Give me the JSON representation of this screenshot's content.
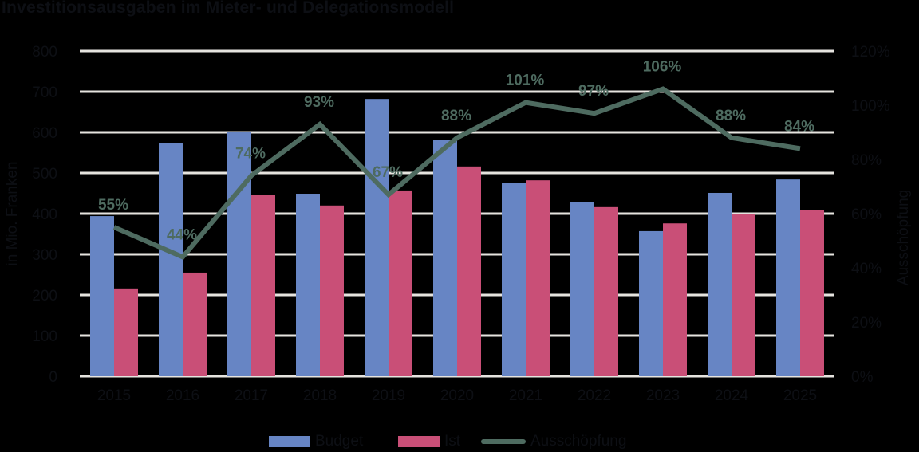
{
  "title": "Investitionsausgaben im Mieter- und Delegationsmodell",
  "colors": {
    "background": "#000000",
    "budget": "#6785c4",
    "ist": "#c94f77",
    "ausschoepfung": "#4e6b60",
    "grid": "#e6e4df",
    "text": "#0d0f14"
  },
  "chart_data": {
    "type": "bar",
    "title": "Investitionsausgaben im Mieter- und Delegationsmodell",
    "xlabel": "",
    "ylabel": "in Mio. Franken",
    "y2label": "Ausschöpfung",
    "ylim": [
      0,
      800
    ],
    "y2lim": [
      0,
      1.2
    ],
    "yticks": [
      "0",
      "100",
      "200",
      "300",
      "400",
      "500",
      "600",
      "700",
      "800"
    ],
    "y2ticks": [
      "0%",
      "20%",
      "40%",
      "60%",
      "80%",
      "100%",
      "120%"
    ],
    "grid": true,
    "legend_position": "bottom",
    "categories": [
      "2015",
      "2016",
      "2017",
      "2018",
      "2019",
      "2020",
      "2021",
      "2022",
      "2023",
      "2024",
      "2025"
    ],
    "series": [
      {
        "name": "Budget",
        "type": "bar",
        "axis": "left",
        "values": [
          394,
          573,
          602,
          449,
          682,
          582,
          476,
          429,
          357,
          451,
          484
        ]
      },
      {
        "name": "Ist",
        "type": "bar",
        "axis": "left",
        "values": [
          216,
          255,
          447,
          420,
          457,
          516,
          482,
          416,
          376,
          398,
          408
        ]
      },
      {
        "name": "Ausschöpfung",
        "type": "line",
        "axis": "right",
        "values": [
          55,
          44,
          74,
          93,
          67,
          88,
          101,
          97,
          106,
          88,
          84
        ],
        "labels": [
          "55%",
          "44%",
          "74%",
          "93%",
          "67%",
          "88%",
          "101%",
          "97%",
          "106%",
          "88%",
          "84%"
        ]
      }
    ]
  },
  "legend": {
    "items": [
      {
        "label": "Budget"
      },
      {
        "label": "Ist"
      },
      {
        "label": "Ausschöpfung"
      }
    ]
  }
}
